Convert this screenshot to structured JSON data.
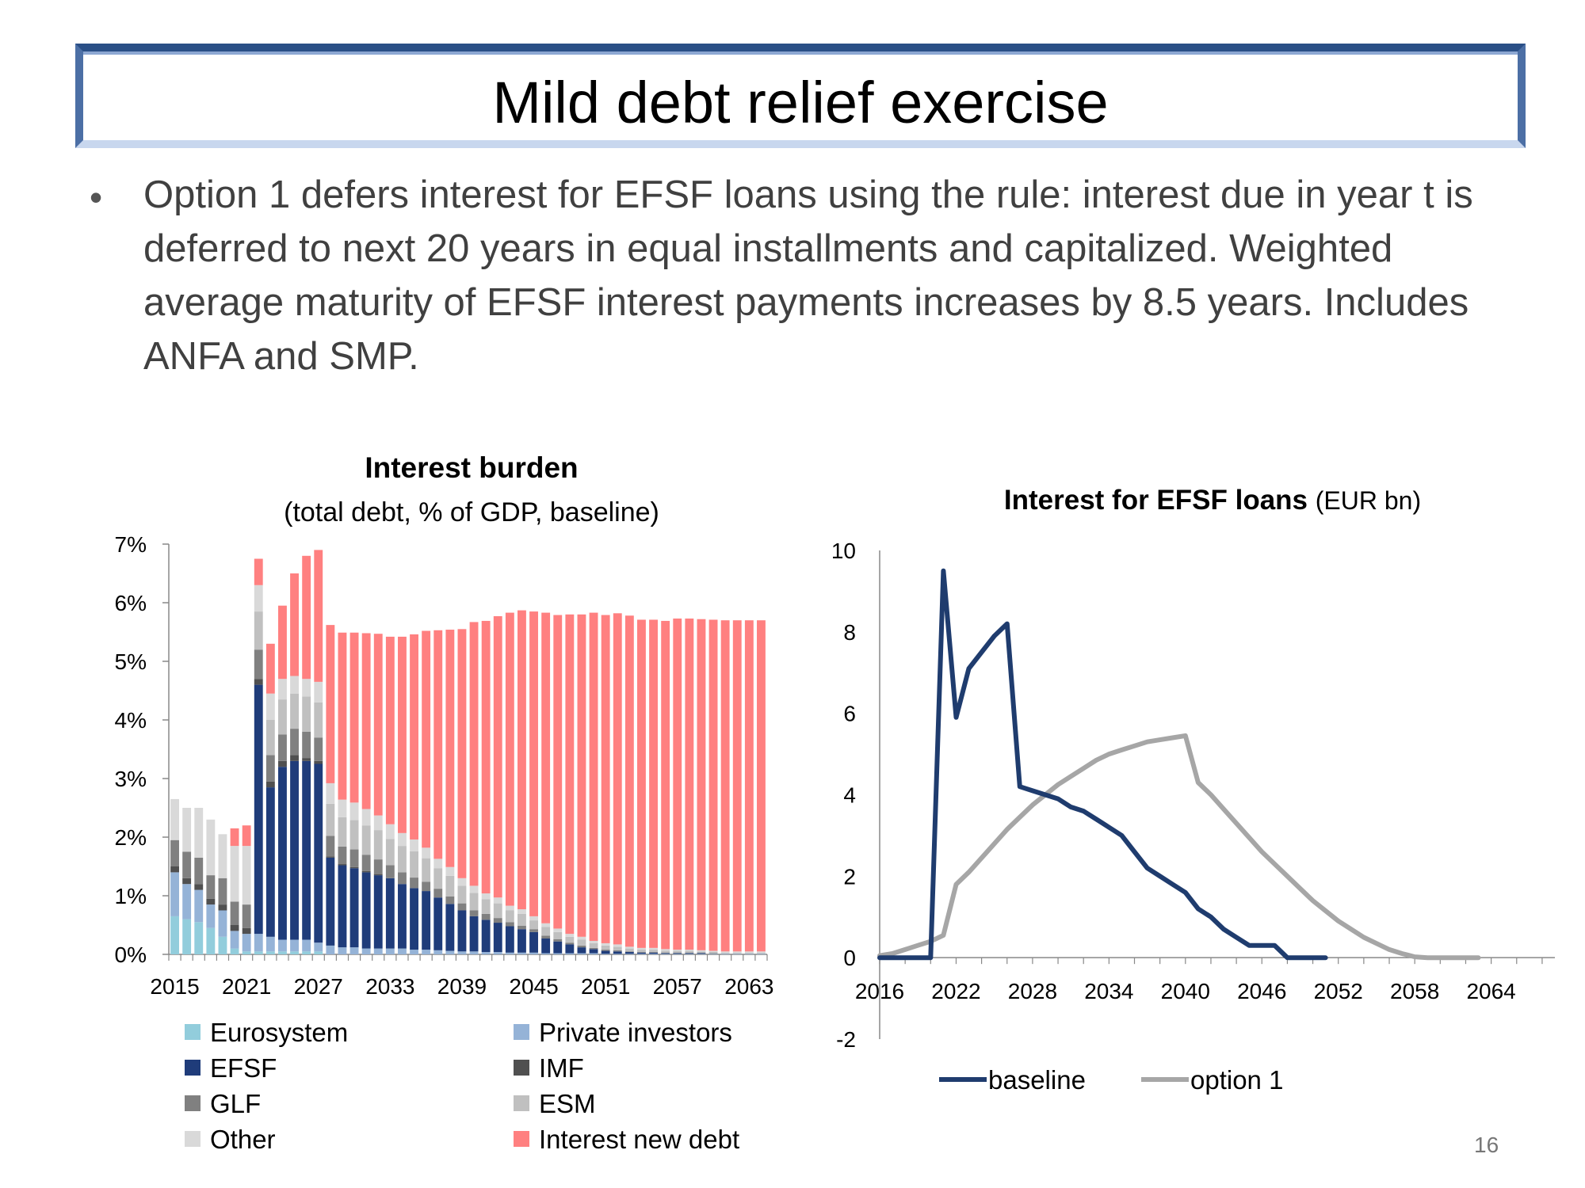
{
  "slide": {
    "title": "Mild debt relief exercise",
    "bullet": "•",
    "body": "Option 1 defers interest for EFSF loans using the rule: interest due in year t is deferred to next 20 years in equal installments and capitalized. Weighted average maturity of EFSF interest payments increases by 8.5 years. Includes ANFA and SMP.",
    "page_number": "16"
  },
  "chart_data": [
    {
      "type": "bar",
      "stacked": true,
      "title": "Interest burden",
      "subtitle": "(total debt, % of GDP, baseline)",
      "ylim": [
        0,
        7
      ],
      "y_ticks": [
        "0%",
        "1%",
        "2%",
        "3%",
        "4%",
        "5%",
        "6%",
        "7%"
      ],
      "x_ticks": [
        "2015",
        "2021",
        "2027",
        "2033",
        "2039",
        "2045",
        "2051",
        "2057",
        "2063"
      ],
      "categories_start": 2015,
      "categories_end": 2064,
      "legend": "bottom",
      "series": [
        {
          "name": "Eurosystem",
          "color": "#92cddc",
          "values": [
            0.65,
            0.6,
            0.55,
            0.45,
            0.3,
            0.1,
            0.05,
            0.05,
            0.05,
            0.05,
            0.05,
            0.05,
            0.05,
            0,
            0,
            0,
            0,
            0,
            0,
            0,
            0,
            0,
            0,
            0,
            0,
            0,
            0,
            0,
            0,
            0,
            0,
            0,
            0,
            0,
            0,
            0,
            0,
            0,
            0,
            0,
            0,
            0,
            0,
            0,
            0,
            0,
            0,
            0,
            0,
            0
          ]
        },
        {
          "name": "Private investors",
          "color": "#95b3d7",
          "values": [
            0.75,
            0.6,
            0.55,
            0.4,
            0.45,
            0.3,
            0.3,
            0.3,
            0.25,
            0.2,
            0.2,
            0.2,
            0.15,
            0.15,
            0.12,
            0.12,
            0.1,
            0.1,
            0.1,
            0.1,
            0.08,
            0.08,
            0.07,
            0.06,
            0.05,
            0.05,
            0.04,
            0.04,
            0.03,
            0.03,
            0.03,
            0.02,
            0.02,
            0.02,
            0.02,
            0.02,
            0.01,
            0.01,
            0.01,
            0.01,
            0.01,
            0.01,
            0.01,
            0.01,
            0.01,
            0.01,
            0.01,
            0.01,
            0.01,
            0.01
          ]
        },
        {
          "name": "EFSF",
          "color": "#1f3c7a",
          "values": [
            0,
            0,
            0,
            0,
            0,
            0,
            0,
            4.25,
            2.55,
            2.95,
            3.05,
            3.05,
            3.05,
            1.5,
            1.4,
            1.35,
            1.3,
            1.25,
            1.2,
            1.1,
            1.05,
            1.0,
            0.9,
            0.8,
            0.7,
            0.6,
            0.55,
            0.5,
            0.45,
            0.4,
            0.35,
            0.25,
            0.2,
            0.15,
            0.1,
            0.07,
            0.05,
            0.04,
            0.03,
            0.02,
            0.02,
            0.01,
            0.01,
            0.01,
            0.01,
            0,
            0,
            0,
            0,
            0
          ]
        },
        {
          "name": "IMF",
          "color": "#505050",
          "values": [
            0.1,
            0.1,
            0.1,
            0.1,
            0.1,
            0.1,
            0.1,
            0.1,
            0.1,
            0.1,
            0.1,
            0.05,
            0.05,
            0.02,
            0.02,
            0.02,
            0.02,
            0.02,
            0,
            0,
            0,
            0,
            0,
            0,
            0,
            0,
            0,
            0,
            0,
            0,
            0,
            0,
            0,
            0,
            0,
            0,
            0,
            0,
            0,
            0,
            0,
            0,
            0,
            0,
            0,
            0,
            0,
            0,
            0,
            0
          ]
        },
        {
          "name": "GLF",
          "color": "#808080",
          "values": [
            0.45,
            0.45,
            0.45,
            0.4,
            0.45,
            0.4,
            0.4,
            0.5,
            0.45,
            0.45,
            0.45,
            0.45,
            0.4,
            0.35,
            0.3,
            0.3,
            0.28,
            0.25,
            0.22,
            0.2,
            0.18,
            0.16,
            0.15,
            0.13,
            0.12,
            0.1,
            0.1,
            0.08,
            0.07,
            0.06,
            0.05,
            0.05,
            0.04,
            0.03,
            0.03,
            0.02,
            0.02,
            0.02,
            0.01,
            0.01,
            0.01,
            0.01,
            0.01,
            0.01,
            0.01,
            0.01,
            0,
            0,
            0,
            0
          ]
        },
        {
          "name": "ESM",
          "color": "#c0c0c0",
          "values": [
            0,
            0,
            0,
            0,
            0,
            0,
            0,
            0.65,
            0.6,
            0.6,
            0.6,
            0.6,
            0.6,
            0.55,
            0.5,
            0.5,
            0.5,
            0.5,
            0.45,
            0.45,
            0.45,
            0.4,
            0.35,
            0.35,
            0.3,
            0.3,
            0.25,
            0.25,
            0.2,
            0.2,
            0.15,
            0.15,
            0.12,
            0.1,
            0.1,
            0.08,
            0.07,
            0.06,
            0.05,
            0.04,
            0.04,
            0.03,
            0.03,
            0.03,
            0.02,
            0.02,
            0.02,
            0.02,
            0.02,
            0.02
          ]
        },
        {
          "name": "Other",
          "color": "#d9d9d9",
          "values": [
            0.7,
            0.75,
            0.85,
            0.95,
            0.75,
            0.95,
            1.0,
            0.45,
            0.45,
            0.35,
            0.3,
            0.3,
            0.35,
            0.35,
            0.3,
            0.3,
            0.28,
            0.25,
            0.25,
            0.22,
            0.2,
            0.18,
            0.16,
            0.15,
            0.13,
            0.12,
            0.1,
            0.1,
            0.08,
            0.08,
            0.07,
            0.06,
            0.06,
            0.05,
            0.05,
            0.04,
            0.04,
            0.04,
            0.03,
            0.03,
            0.03,
            0.03,
            0.02,
            0.02,
            0.02,
            0.02,
            0.02,
            0.02,
            0.02,
            0.02
          ]
        },
        {
          "name": "Interest new debt",
          "color": "#ff8080",
          "values": [
            0,
            0,
            0,
            0,
            0,
            0.3,
            0.35,
            0.45,
            0.85,
            1.25,
            1.75,
            2.1,
            2.25,
            2.7,
            2.85,
            2.9,
            3.0,
            3.1,
            3.2,
            3.35,
            3.5,
            3.7,
            3.9,
            4.05,
            4.25,
            4.5,
            4.65,
            4.8,
            5.0,
            5.1,
            5.2,
            5.3,
            5.35,
            5.45,
            5.5,
            5.6,
            5.6,
            5.65,
            5.65,
            5.6,
            5.6,
            5.6,
            5.65,
            5.65,
            5.65,
            5.65,
            5.65,
            5.65,
            5.65,
            5.65
          ]
        }
      ]
    },
    {
      "type": "line",
      "title": "Interest for EFSF loans",
      "title_unit": "(EUR bn)",
      "ylim": [
        -2,
        10
      ],
      "y_ticks": [
        "-2",
        "0",
        "2",
        "4",
        "6",
        "8",
        "10"
      ],
      "x_ticks": [
        "2016",
        "2022",
        "2028",
        "2034",
        "2040",
        "2046",
        "2052",
        "2058",
        "2064"
      ],
      "xlim": [
        2016,
        2069
      ],
      "legend": "bottom",
      "series": [
        {
          "name": "baseline",
          "color": "#1f3c6e",
          "x": [
            2016,
            2017,
            2018,
            2019,
            2020,
            2021,
            2022,
            2023,
            2024,
            2025,
            2026,
            2027,
            2028,
            2029,
            2030,
            2031,
            2032,
            2033,
            2034,
            2035,
            2036,
            2037,
            2038,
            2039,
            2040,
            2041,
            2042,
            2043,
            2044,
            2045,
            2046,
            2047,
            2048,
            2049,
            2050,
            2051
          ],
          "y": [
            0,
            0,
            0,
            0,
            0,
            9.5,
            5.9,
            7.1,
            7.5,
            7.9,
            8.2,
            4.2,
            4.1,
            4.0,
            3.9,
            3.7,
            3.6,
            3.4,
            3.2,
            3.0,
            2.6,
            2.2,
            2.0,
            1.8,
            1.6,
            1.2,
            1.0,
            0.7,
            0.5,
            0.3,
            0.3,
            0.3,
            0,
            0,
            0,
            0
          ]
        },
        {
          "name": "option 1",
          "color": "#a6a6a6",
          "x": [
            2016,
            2017,
            2018,
            2019,
            2020,
            2021,
            2022,
            2023,
            2024,
            2025,
            2026,
            2027,
            2028,
            2029,
            2030,
            2031,
            2032,
            2033,
            2034,
            2035,
            2036,
            2037,
            2038,
            2039,
            2040,
            2041,
            2042,
            2043,
            2044,
            2045,
            2046,
            2047,
            2048,
            2049,
            2050,
            2051,
            2052,
            2053,
            2054,
            2055,
            2056,
            2057,
            2058,
            2059,
            2060,
            2061,
            2062,
            2063
          ],
          "y": [
            0.05,
            0.1,
            0.2,
            0.3,
            0.4,
            0.55,
            1.8,
            2.1,
            2.45,
            2.8,
            3.15,
            3.45,
            3.75,
            4.0,
            4.25,
            4.45,
            4.65,
            4.85,
            5.0,
            5.1,
            5.2,
            5.3,
            5.35,
            5.4,
            5.45,
            4.3,
            4.0,
            3.65,
            3.3,
            2.95,
            2.6,
            2.3,
            2.0,
            1.7,
            1.4,
            1.15,
            0.9,
            0.7,
            0.5,
            0.35,
            0.2,
            0.1,
            0.02,
            0,
            0,
            0,
            0,
            0
          ]
        }
      ]
    }
  ]
}
